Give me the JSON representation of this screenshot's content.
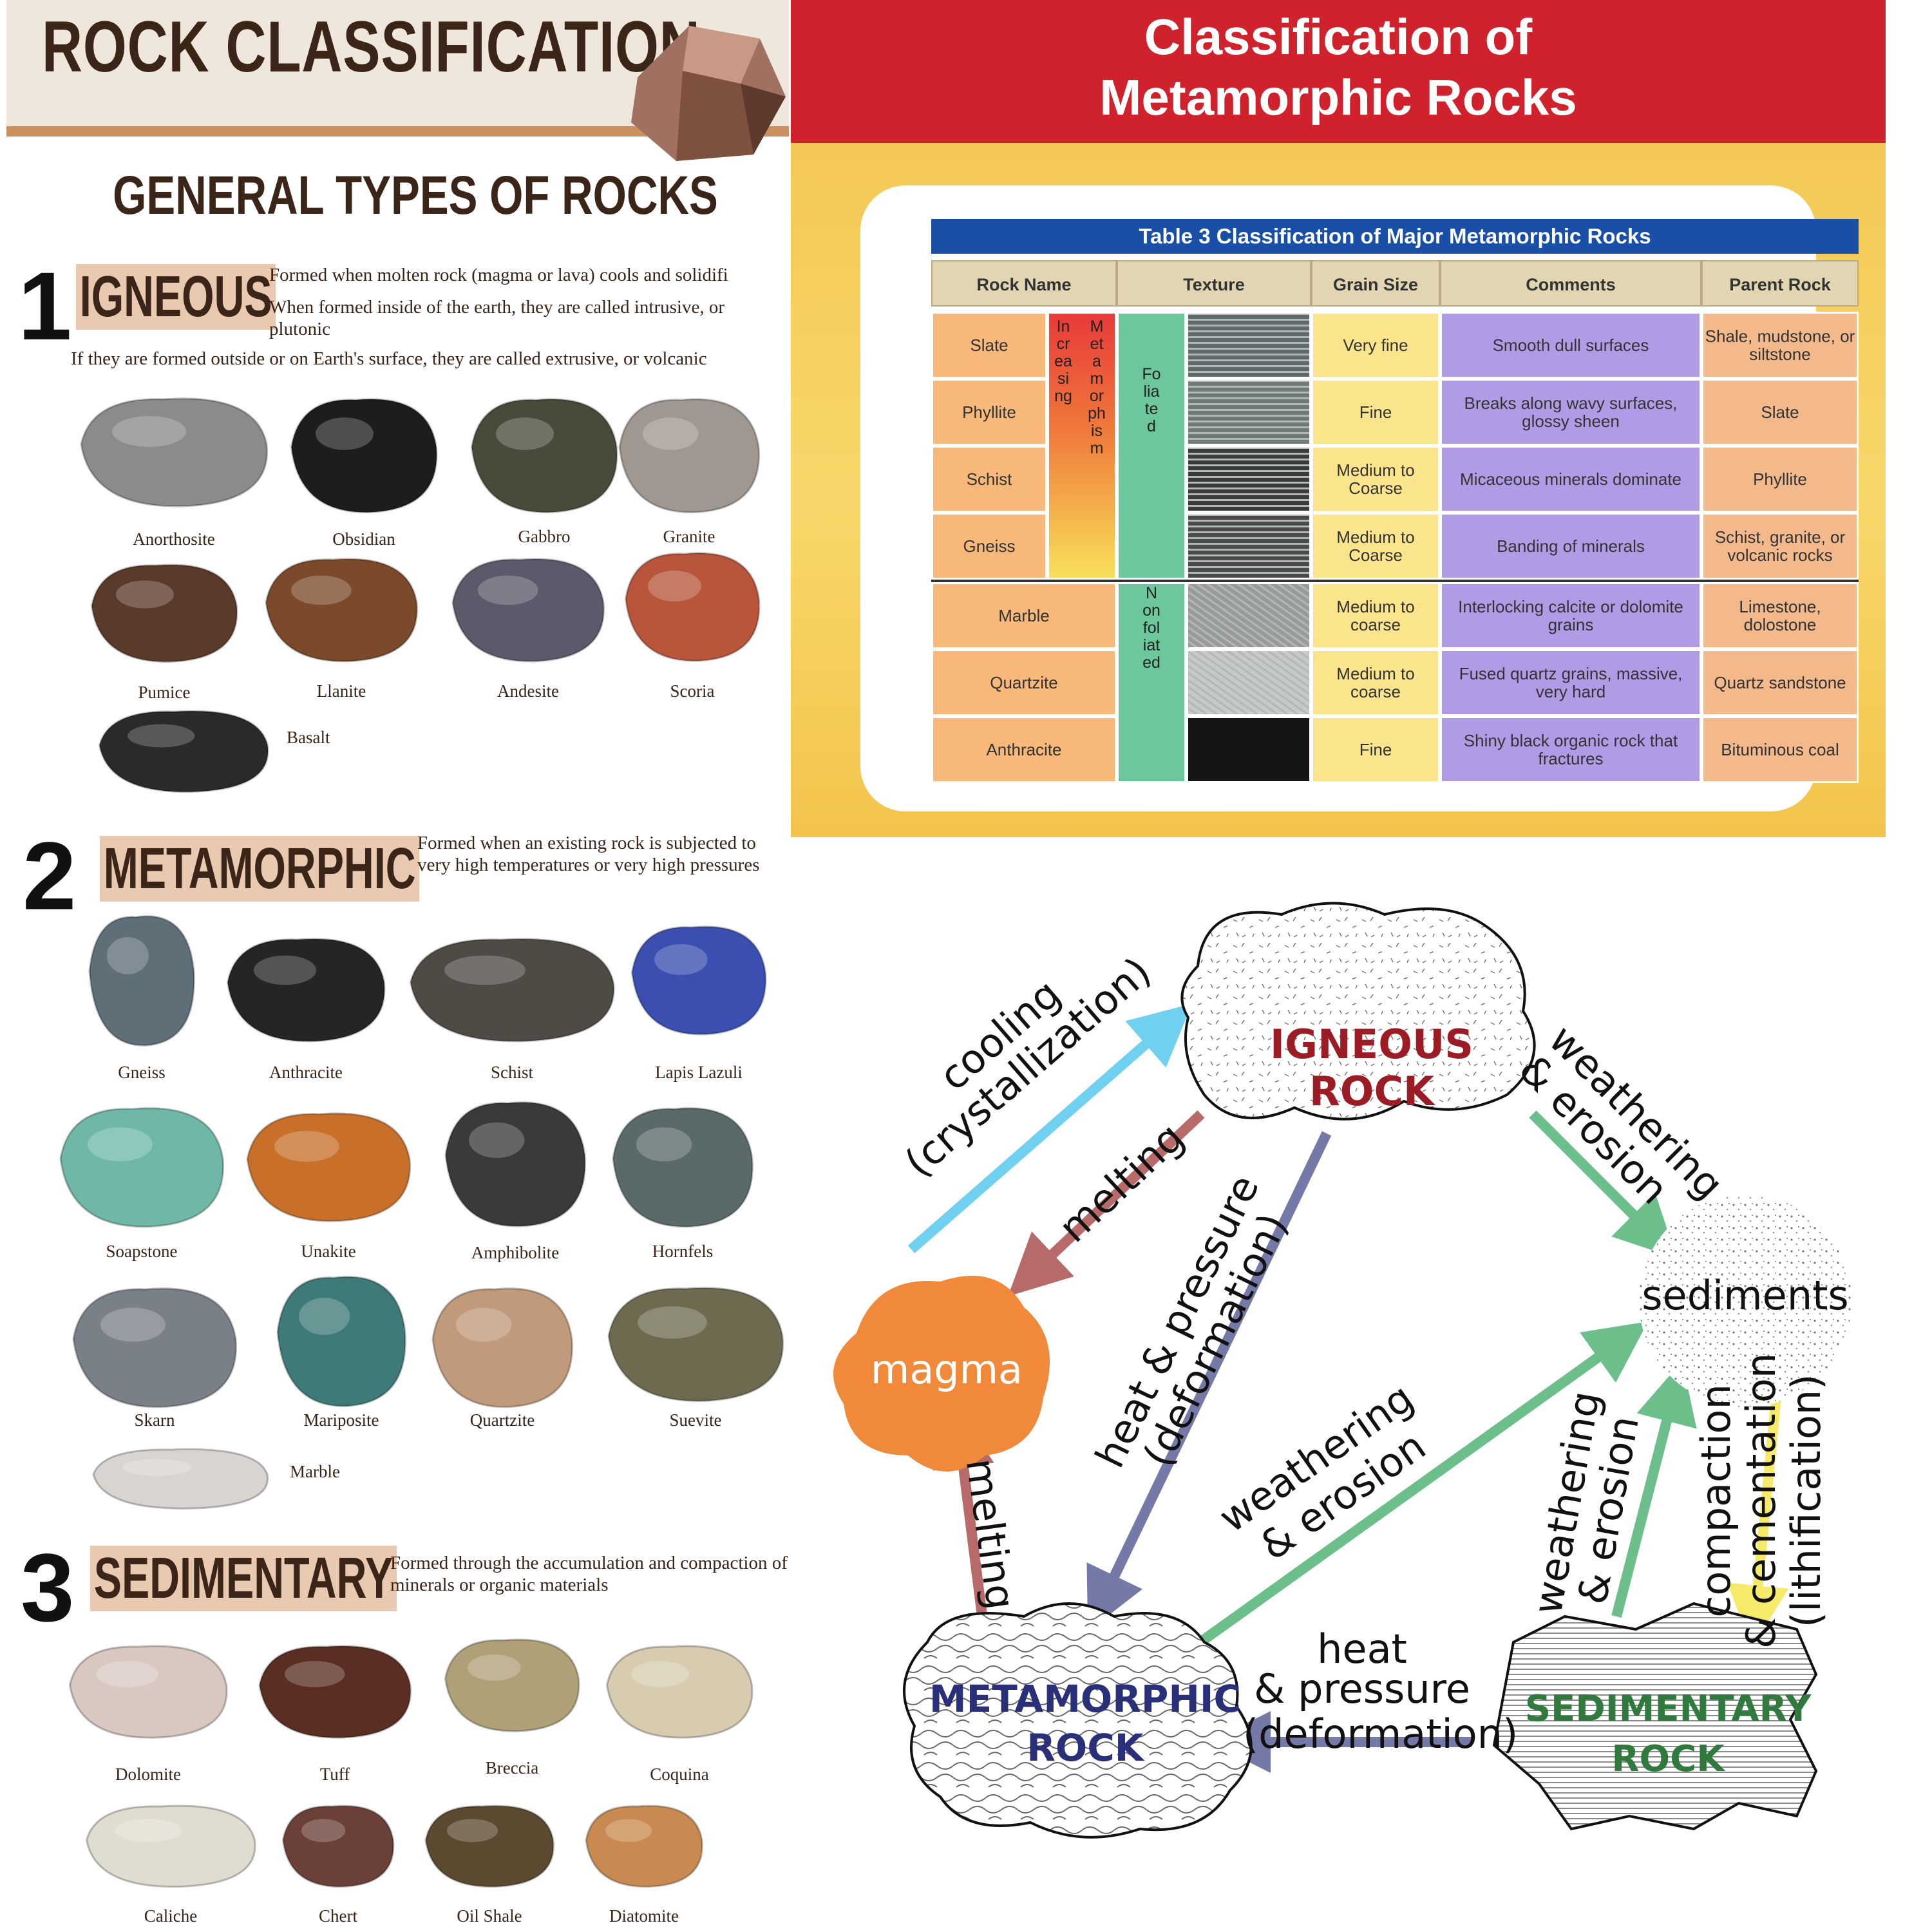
{
  "poster": {
    "title": "ROCK CLASSIFICATION",
    "subtitle": "GENERAL TYPES OF ROCKS",
    "sections": [
      {
        "number": "1",
        "label": "IGNEOUS",
        "desc": [
          "Formed when molten rock (magma or lava) cools and solidifi",
          "When formed inside of the earth, they are called intrusive, or plutonic",
          "If they are formed outside or on Earth's surface, they are called extrusive, or volcanic"
        ],
        "rocks": [
          "Anorthosite",
          "Obsidian",
          "Gabbro",
          "Granite",
          "Pumice",
          "Llanite",
          "Andesite",
          "Scoria",
          "Basalt"
        ]
      },
      {
        "number": "2",
        "label": "METAMORPHIC",
        "desc": [
          "Formed when an existing rock is subjected to very high temperatures or very high pressures"
        ],
        "rocks": [
          "Gneiss",
          "Anthracite",
          "Schist",
          "Lapis Lazuli",
          "Soapstone",
          "Unakite",
          "Amphibolite",
          "Hornfels",
          "Skarn",
          "Mariposite",
          "Quartzite",
          "Suevite",
          "Marble"
        ]
      },
      {
        "number": "3",
        "label": "SEDIMENTARY",
        "desc": [
          "Formed through the accumulation and compaction of minerals or organic materials"
        ],
        "rocks": [
          "Dolomite",
          "Tuff",
          "Breccia",
          "Coquina",
          "Caliche",
          "Chert",
          "Oil Shale",
          "Diatomite"
        ]
      }
    ]
  },
  "table_panel": {
    "header": [
      "Classification of",
      "Metamorphic Rocks"
    ],
    "table_title": "Table 3  Classification of Major Metamorphic Rocks",
    "columns": [
      "Rock Name",
      "Texture",
      "Grain Size",
      "Comments",
      "Parent Rock"
    ],
    "increasing_label": "Increasing",
    "metamorphism_label": "Metamorphism",
    "foliated_label": "Foliated",
    "nonfoliated_label": "Nonfoliated",
    "rows": [
      {
        "name": "Slate",
        "grain": "Very fine",
        "comment": "Smooth dull surfaces",
        "parent": "Shale, mudstone, or siltstone"
      },
      {
        "name": "Phyllite",
        "grain": "Fine",
        "comment": "Breaks along wavy surfaces, glossy sheen",
        "parent": "Slate"
      },
      {
        "name": "Schist",
        "grain": "Medium to Coarse",
        "comment": "Micaceous minerals dominate",
        "parent": "Phyllite"
      },
      {
        "name": "Gneiss",
        "grain": "Medium to Coarse",
        "comment": "Banding of minerals",
        "parent": "Schist, granite, or volcanic rocks"
      },
      {
        "name": "Marble",
        "grain": "Medium to coarse",
        "comment": "Interlocking calcite or dolomite grains",
        "parent": "Limestone, dolostone"
      },
      {
        "name": "Quartzite",
        "grain": "Medium to coarse",
        "comment": "Fused quartz grains, massive, very hard",
        "parent": "Quartz sandstone"
      },
      {
        "name": "Anthracite",
        "grain": "Fine",
        "comment": "Shiny black organic rock that fractures",
        "parent": "Bituminous coal"
      }
    ]
  },
  "rock_cycle": {
    "igneous": "IGNEOUS ROCK",
    "sediments": "sediments",
    "magma": "magma",
    "metamorphic": [
      "METAMORPHIC",
      "ROCK"
    ],
    "sedimentary": [
      "SEDIMENTARY",
      "ROCK"
    ],
    "cooling": [
      "cooling",
      "(crystallization)"
    ],
    "melting_top": "melting",
    "melting_left": "melting",
    "heat_pressure_diag": [
      "heat & pressure",
      "(deformation)"
    ],
    "weathering_top": [
      "weathering",
      "& erosion"
    ],
    "weathering_mid": [
      "weathering",
      "& erosion"
    ],
    "weathering_right": [
      "weathering",
      "& erosion"
    ],
    "compaction": [
      "compaction",
      "& cementation",
      "(lithification)"
    ],
    "heat_pressure_bottom": [
      "heat",
      "& pressure",
      "(deformation)"
    ],
    "colors": {
      "igneous": "#9b1c24",
      "metamorphic": "#2a2f7a",
      "sedimentary": "#2f7a3c",
      "magma": "#f08a3a",
      "cyan": "#6fd0f0",
      "rose": "#b86a6a",
      "slate": "#7479a8",
      "green": "#6cbf8b",
      "yellow": "#f5ea6a"
    }
  }
}
